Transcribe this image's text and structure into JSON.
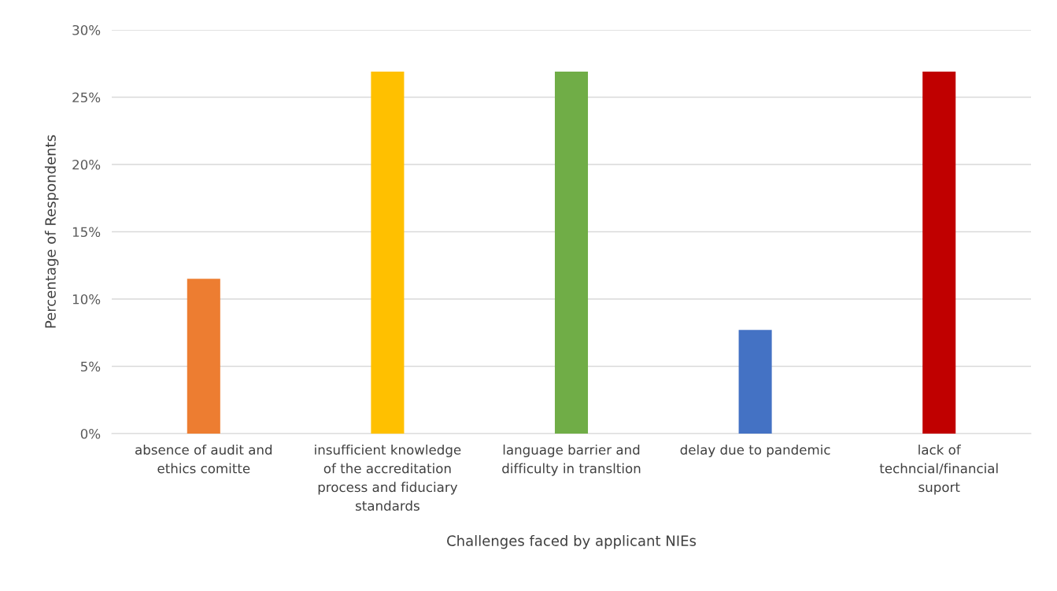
{
  "chart_data": {
    "type": "bar",
    "xlabel": "Challenges faced by applicant NIEs",
    "ylabel": "Percentage of Respondents",
    "categories": [
      "absence of audit and ethics comitte",
      "insufficient knowledge of the accreditation process and fiduciary standards",
      "language barrier and difficulty in transltion",
      "delay due to pandemic",
      "lack of techncial/financial suport"
    ],
    "values": [
      11.5,
      26.9,
      26.9,
      7.7,
      26.9
    ],
    "colors": [
      "#ed7d31",
      "#ffc000",
      "#70ad47",
      "#4472c4",
      "#c00000"
    ],
    "ylim": [
      0,
      30
    ],
    "yticks": [
      {
        "value": 0,
        "label": "0%"
      },
      {
        "value": 5,
        "label": "5%"
      },
      {
        "value": 10,
        "label": "10%"
      },
      {
        "value": 15,
        "label": "15%"
      },
      {
        "value": 20,
        "label": "20%"
      },
      {
        "value": 25,
        "label": "25%"
      },
      {
        "value": 30,
        "label": "30%"
      }
    ],
    "grid": "y"
  }
}
